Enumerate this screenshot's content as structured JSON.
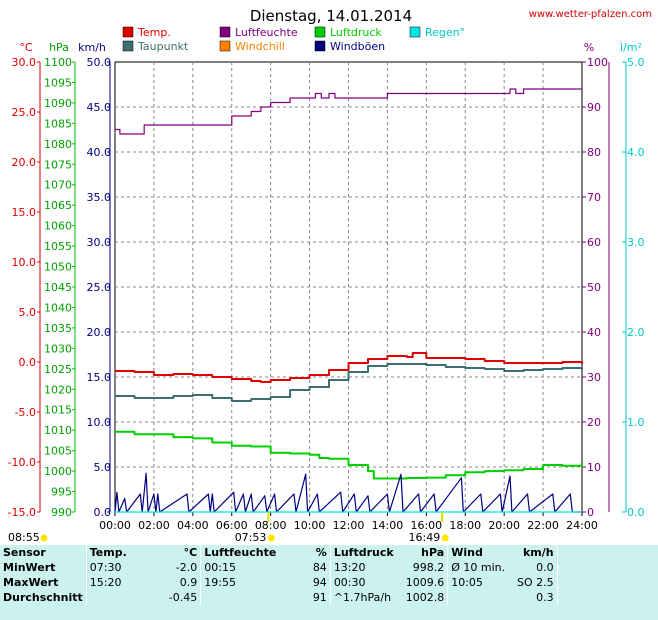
{
  "header": {
    "title": "Dienstag, 14.01.2014",
    "site": "www.wetter-pfalzen.com"
  },
  "legend": [
    {
      "label": "Temp.",
      "color": "#e00000"
    },
    {
      "label": "Luftfeuchte",
      "color": "#800080"
    },
    {
      "label": "Luftdruck",
      "color": "#00d000"
    },
    {
      "label": "Regen°",
      "color": "#00e5e5"
    },
    {
      "label": "Taupunkt",
      "color": "#3c7070"
    },
    {
      "label": "Windchill",
      "color": "#ff8000"
    },
    {
      "label": "Windböen",
      "color": "#000080"
    }
  ],
  "axes": {
    "temp_unit": "°C",
    "hpa_unit": "hPa",
    "kmh_unit": "km/h",
    "pct_unit": "%",
    "rain_unit": "l/m²",
    "temp_ticks": [
      "30.0",
      "25.0",
      "20.0",
      "15.0",
      "10.0",
      "5.0",
      "0.0",
      "-5.0",
      "-10.0",
      "-15.0"
    ],
    "hpa_ticks": [
      "1100",
      "1095",
      "1090",
      "1085",
      "1080",
      "1075",
      "1070",
      "1065",
      "1060",
      "1055",
      "1050",
      "1045",
      "1040",
      "1035",
      "1030",
      "1025",
      "1020",
      "1015",
      "1010",
      "1005",
      "1000",
      "995",
      "990"
    ],
    "kmh_ticks": [
      "50.0",
      "45.0",
      "40.0",
      "35.0",
      "30.0",
      "25.0",
      "20.0",
      "15.0",
      "10.0",
      "5.0",
      "0.0"
    ],
    "pct_ticks": [
      "100",
      "90",
      "80",
      "70",
      "60",
      "50",
      "40",
      "30",
      "20",
      "10",
      "0"
    ],
    "rain_ticks": [
      "5.0",
      "4.0",
      "3.0",
      "2.0",
      "1.0",
      "0.0"
    ],
    "x_ticks": [
      "00:00",
      "02:00",
      "04:00",
      "06:00",
      "08:00",
      "10:00",
      "12:00",
      "14:00",
      "16:00",
      "18:00",
      "20:00",
      "22:00",
      "24:00"
    ],
    "sun_events": [
      "08:55",
      "07:53",
      "16:49"
    ]
  },
  "chart_data": {
    "type": "line",
    "title": "Dienstag, 14.01.2014",
    "x_range": [
      "00:00",
      "24:00"
    ],
    "temp_range": [
      -15,
      30
    ],
    "hpa_range": [
      990,
      1100
    ],
    "kmh_range": [
      0,
      50
    ],
    "pct_range": [
      0,
      100
    ],
    "rain_range": [
      0,
      5
    ],
    "grid": true,
    "series": [
      {
        "name": "Temp.",
        "unit": "°C",
        "color": "#e00000",
        "points": [
          [
            0,
            -0.9
          ],
          [
            1,
            -1.0
          ],
          [
            2,
            -1.3
          ],
          [
            3,
            -1.2
          ],
          [
            4,
            -1.3
          ],
          [
            5,
            -1.5
          ],
          [
            6,
            -1.7
          ],
          [
            7,
            -1.9
          ],
          [
            7.5,
            -2.0
          ],
          [
            8,
            -1.8
          ],
          [
            9,
            -1.6
          ],
          [
            10,
            -1.3
          ],
          [
            11,
            -0.8
          ],
          [
            12,
            -0.1
          ],
          [
            13,
            0.3
          ],
          [
            14,
            0.6
          ],
          [
            15,
            0.5
          ],
          [
            15.3,
            0.9
          ],
          [
            16,
            0.4
          ],
          [
            17,
            0.4
          ],
          [
            18,
            0.3
          ],
          [
            19,
            0.1
          ],
          [
            20,
            -0.1
          ],
          [
            21,
            -0.1
          ],
          [
            22,
            -0.1
          ],
          [
            23,
            0.0
          ],
          [
            24,
            -0.2
          ]
        ]
      },
      {
        "name": "Taupunkt",
        "unit": "°C",
        "color": "#3c7070",
        "points": [
          [
            0,
            -3.4
          ],
          [
            1,
            -3.6
          ],
          [
            2,
            -3.6
          ],
          [
            3,
            -3.4
          ],
          [
            4,
            -3.3
          ],
          [
            5,
            -3.6
          ],
          [
            6,
            -3.9
          ],
          [
            7,
            -3.7
          ],
          [
            8,
            -3.5
          ],
          [
            9,
            -2.8
          ],
          [
            10,
            -2.5
          ],
          [
            11,
            -1.8
          ],
          [
            12,
            -1.0
          ],
          [
            13,
            -0.4
          ],
          [
            14,
            -0.2
          ],
          [
            15,
            -0.2
          ],
          [
            16,
            -0.3
          ],
          [
            17,
            -0.5
          ],
          [
            18,
            -0.6
          ],
          [
            19,
            -0.7
          ],
          [
            20,
            -0.9
          ],
          [
            21,
            -0.8
          ],
          [
            22,
            -0.7
          ],
          [
            23,
            -0.6
          ],
          [
            24,
            -0.8
          ]
        ]
      },
      {
        "name": "Luftfeuchte",
        "unit": "%",
        "color": "#800080",
        "points": [
          [
            0,
            85
          ],
          [
            0.25,
            84
          ],
          [
            0.5,
            84
          ],
          [
            1.5,
            86
          ],
          [
            2,
            86
          ],
          [
            3,
            86
          ],
          [
            4,
            86
          ],
          [
            5,
            86
          ],
          [
            5.7,
            86
          ],
          [
            6,
            88
          ],
          [
            7,
            89
          ],
          [
            7.5,
            90
          ],
          [
            8,
            91
          ],
          [
            8.5,
            91
          ],
          [
            9,
            92
          ],
          [
            10,
            92
          ],
          [
            10.3,
            93
          ],
          [
            10.6,
            92
          ],
          [
            11,
            93
          ],
          [
            11.3,
            92
          ],
          [
            12,
            92
          ],
          [
            13,
            92
          ],
          [
            13.5,
            92
          ],
          [
            14,
            93
          ],
          [
            15,
            93
          ],
          [
            16,
            93
          ],
          [
            17,
            93
          ],
          [
            18,
            93
          ],
          [
            19,
            93
          ],
          [
            20,
            93
          ],
          [
            20.3,
            94
          ],
          [
            20.6,
            93
          ],
          [
            21,
            94
          ],
          [
            22,
            94
          ],
          [
            23,
            94
          ],
          [
            24,
            94
          ]
        ]
      },
      {
        "name": "Luftdruck",
        "unit": "hPa",
        "color": "#00d000",
        "points": [
          [
            0,
            1009.6
          ],
          [
            0.3,
            1009.6
          ],
          [
            1,
            1009.0
          ],
          [
            2,
            1009.0
          ],
          [
            3,
            1008.3
          ],
          [
            4,
            1008.0
          ],
          [
            5,
            1007.0
          ],
          [
            6,
            1006.2
          ],
          [
            7,
            1006.0
          ],
          [
            7.5,
            1006.0
          ],
          [
            8,
            1004.5
          ],
          [
            9,
            1004.3
          ],
          [
            10,
            1004.0
          ],
          [
            10.5,
            1003.2
          ],
          [
            11,
            1003.0
          ],
          [
            12,
            1001.5
          ],
          [
            13,
            1000.0
          ],
          [
            13.3,
            998.2
          ],
          [
            14,
            998.2
          ],
          [
            15,
            998.3
          ],
          [
            16,
            998.4
          ],
          [
            17,
            999.0
          ],
          [
            18,
            999.7
          ],
          [
            19,
            1000.0
          ],
          [
            20,
            1000.2
          ],
          [
            21,
            1000.5
          ],
          [
            22,
            1001.5
          ],
          [
            23,
            1001.3
          ],
          [
            24,
            1002.0
          ]
        ]
      },
      {
        "name": "Windböen",
        "unit": "km/h",
        "color": "#000080",
        "points": [
          [
            0,
            0
          ],
          [
            0.1,
            2.2
          ],
          [
            0.2,
            0
          ],
          [
            0.5,
            1.5
          ],
          [
            0.6,
            0
          ],
          [
            1.3,
            2.0
          ],
          [
            1.4,
            0
          ],
          [
            1.6,
            4.3
          ],
          [
            1.7,
            0
          ],
          [
            2.0,
            2.0
          ],
          [
            2.1,
            0
          ],
          [
            2.2,
            2.0
          ],
          [
            2.3,
            0
          ],
          [
            3.7,
            2.0
          ],
          [
            3.8,
            0
          ],
          [
            4.8,
            2.0
          ],
          [
            4.9,
            0
          ],
          [
            5.0,
            2.0
          ],
          [
            5.1,
            0
          ],
          [
            6.1,
            2.2
          ],
          [
            6.2,
            0
          ],
          [
            6.6,
            2.0
          ],
          [
            6.7,
            0
          ],
          [
            7.0,
            2.0
          ],
          [
            7.1,
            0
          ],
          [
            7.7,
            1.8
          ],
          [
            7.8,
            0
          ],
          [
            8.2,
            2.0
          ],
          [
            8.3,
            0
          ],
          [
            9.2,
            2.0
          ],
          [
            9.3,
            0
          ],
          [
            9.8,
            4.2
          ],
          [
            9.9,
            0
          ],
          [
            10.4,
            2.0
          ],
          [
            10.5,
            0
          ],
          [
            11.6,
            2.2
          ],
          [
            11.7,
            0
          ],
          [
            12.3,
            2.0
          ],
          [
            12.4,
            0
          ],
          [
            13.0,
            1.8
          ],
          [
            13.1,
            0
          ],
          [
            14.0,
            2.0
          ],
          [
            14.1,
            0
          ],
          [
            14.7,
            4.2
          ],
          [
            14.8,
            0
          ],
          [
            15.6,
            2.0
          ],
          [
            15.7,
            0
          ],
          [
            16.4,
            2.0
          ],
          [
            16.5,
            0
          ],
          [
            17.8,
            3.8
          ],
          [
            17.9,
            0
          ],
          [
            18.8,
            2.0
          ],
          [
            18.9,
            0
          ],
          [
            19.8,
            2.0
          ],
          [
            19.9,
            0
          ],
          [
            20.3,
            4.0
          ],
          [
            20.4,
            0
          ],
          [
            21.2,
            2.0
          ],
          [
            21.3,
            0
          ],
          [
            22.5,
            2.0
          ],
          [
            22.6,
            0
          ],
          [
            23.4,
            2.0
          ],
          [
            23.5,
            0
          ],
          [
            24,
            0
          ]
        ]
      },
      {
        "name": "Regen°",
        "unit": "l/m²",
        "color": "#00e5e5",
        "points": [
          [
            0,
            0
          ],
          [
            24,
            0
          ]
        ]
      }
    ]
  },
  "stats": {
    "headers": {
      "sensor": "Sensor",
      "temp": "Temp.",
      "temp_unit": "°C",
      "hum": "Luftfeuchte",
      "hum_unit": "%",
      "pres": "Luftdruck",
      "pres_unit": "hPa",
      "wind": "Wind",
      "wind_unit": "km/h"
    },
    "rows": [
      {
        "label": "MinWert",
        "temp_time": "07:30",
        "temp_val": "-2.0",
        "hum_time": "00:15",
        "hum_val": "84",
        "pres_time": "13:20",
        "pres_val": "998.2",
        "wind_time": "Ø 10 min.",
        "wind_val": "0.0"
      },
      {
        "label": "MaxWert",
        "temp_time": "15:20",
        "temp_val": "0.9",
        "hum_time": "19:55",
        "hum_val": "94",
        "pres_time": "00:30",
        "pres_val": "1009.6",
        "wind_time": "10:05",
        "wind_val": "SO 2.5"
      },
      {
        "label": "Durchschnitt",
        "temp_time": "",
        "temp_val": "-0.45",
        "hum_time": "",
        "hum_val": "91",
        "pres_time": "^1.7hPa/h",
        "pres_val": "1002.8",
        "wind_time": "",
        "wind_val": "0.3"
      }
    ]
  }
}
